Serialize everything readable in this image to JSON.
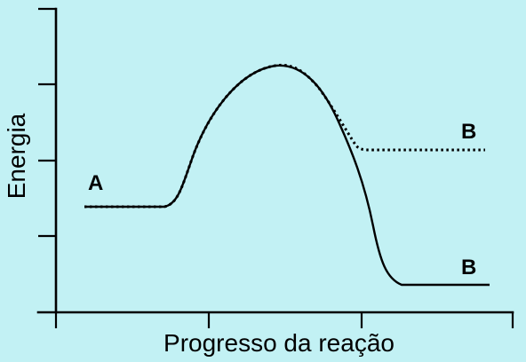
{
  "diagram": {
    "axis_x_title": "Progresso da reação",
    "axis_y_title": "Energia",
    "reactant_label": "A",
    "product_label_high": "B",
    "product_label_low": "B"
  },
  "chart_data": {
    "type": "line",
    "title": "",
    "xlabel": "Progresso da reação",
    "ylabel": "Energia",
    "series": [
      {
        "style": "dotted",
        "start_label": "A",
        "end_label": "B"
      },
      {
        "style": "solid",
        "start_label": "A",
        "end_label": "B"
      }
    ],
    "y_ticks": 4,
    "x_ticks": 3
  }
}
